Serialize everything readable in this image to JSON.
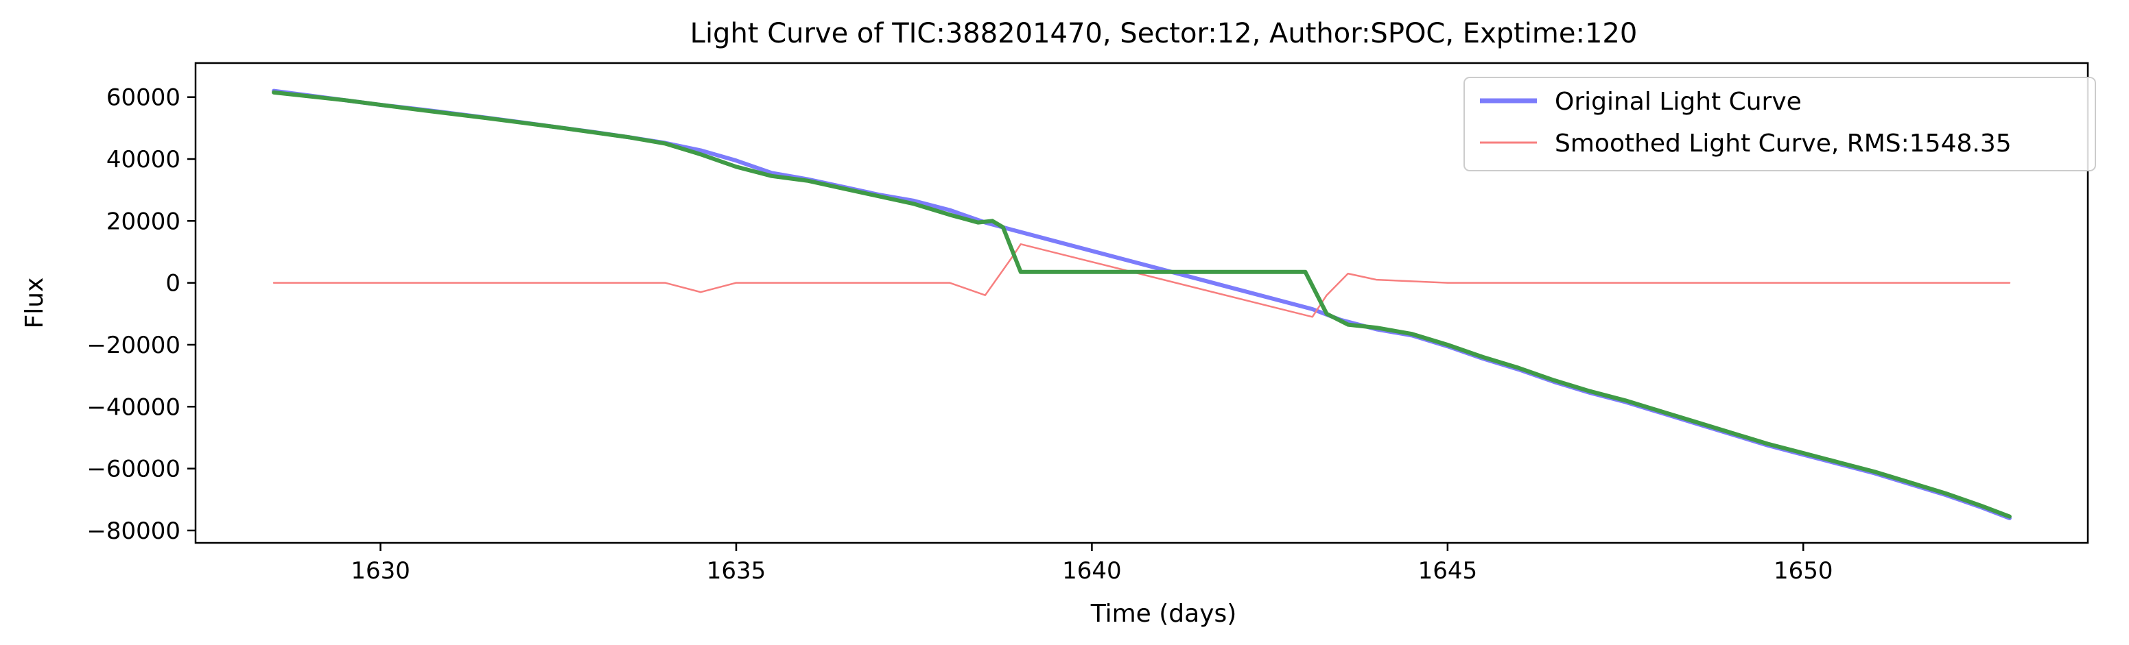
{
  "chart_data": {
    "type": "line",
    "title": "Light Curve of TIC:388201470, Sector:12, Author:SPOC, Exptime:120",
    "xlabel": "Time (days)",
    "ylabel": "Flux",
    "xlim": [
      1627.4,
      1654.0
    ],
    "ylim": [
      -84000,
      71000
    ],
    "x_ticks": [
      1630,
      1635,
      1640,
      1645,
      1650
    ],
    "y_ticks": [
      60000,
      40000,
      20000,
      0,
      -20000,
      -40000,
      -60000,
      -80000
    ],
    "grid": false,
    "legend_position": "top-right",
    "series": [
      {
        "name": "Original Light Curve",
        "color": "#7c7cfb",
        "points": [
          [
            1628.5,
            62000
          ],
          [
            1629.0,
            60500
          ],
          [
            1629.5,
            59000
          ],
          [
            1630.0,
            57500
          ],
          [
            1630.5,
            56200
          ],
          [
            1631.0,
            54800
          ],
          [
            1631.5,
            53300
          ],
          [
            1632.0,
            51800
          ],
          [
            1632.5,
            50200
          ],
          [
            1633.0,
            48700
          ],
          [
            1633.5,
            47000
          ],
          [
            1634.0,
            45200
          ],
          [
            1634.5,
            42800
          ],
          [
            1635.0,
            39500
          ],
          [
            1635.5,
            35500
          ],
          [
            1636.0,
            33500
          ],
          [
            1636.5,
            31000
          ],
          [
            1637.0,
            28500
          ],
          [
            1637.5,
            26500
          ],
          [
            1638.0,
            23500
          ],
          [
            1638.5,
            19500
          ],
          [
            1638.9,
            17000
          ],
          [
            1643.1,
            -8500
          ],
          [
            1643.5,
            -12000
          ],
          [
            1644.0,
            -15000
          ],
          [
            1644.5,
            -17000
          ],
          [
            1645.0,
            -20500
          ],
          [
            1645.5,
            -24500
          ],
          [
            1646.0,
            -28000
          ],
          [
            1646.5,
            -32000
          ],
          [
            1647.0,
            -35500
          ],
          [
            1647.5,
            -38500
          ],
          [
            1648.0,
            -42000
          ],
          [
            1648.5,
            -45500
          ],
          [
            1649.0,
            -49000
          ],
          [
            1649.5,
            -52500
          ],
          [
            1650.0,
            -55500
          ],
          [
            1650.5,
            -58500
          ],
          [
            1651.0,
            -61500
          ],
          [
            1651.5,
            -65000
          ],
          [
            1652.0,
            -68500
          ],
          [
            1652.5,
            -72500
          ],
          [
            1652.9,
            -76000
          ]
        ]
      },
      {
        "name": "Smoothed Light Curve, RMS:1548.35",
        "color": "#f77f7f",
        "points": [
          [
            1628.5,
            0
          ],
          [
            1630.0,
            0
          ],
          [
            1632.0,
            0
          ],
          [
            1634.0,
            0
          ],
          [
            1634.5,
            -3000
          ],
          [
            1635.0,
            0
          ],
          [
            1636.0,
            0
          ],
          [
            1637.0,
            0
          ],
          [
            1638.0,
            0
          ],
          [
            1638.5,
            -4000
          ],
          [
            1638.9,
            9000
          ],
          [
            1639.0,
            12500
          ],
          [
            1643.1,
            -11000
          ],
          [
            1643.3,
            -4000
          ],
          [
            1643.6,
            3000
          ],
          [
            1644.0,
            1000
          ],
          [
            1645.0,
            0
          ],
          [
            1647.0,
            0
          ],
          [
            1649.0,
            0
          ],
          [
            1651.0,
            0
          ],
          [
            1652.9,
            0
          ]
        ]
      },
      {
        "color": "#3f9a46",
        "points": [
          [
            1628.5,
            61500
          ],
          [
            1629.5,
            59000
          ],
          [
            1630.5,
            56000
          ],
          [
            1631.5,
            53200
          ],
          [
            1632.5,
            50200
          ],
          [
            1633.5,
            47000
          ],
          [
            1634.0,
            45000
          ],
          [
            1634.5,
            41500
          ],
          [
            1635.0,
            37500
          ],
          [
            1635.5,
            34500
          ],
          [
            1636.0,
            33000
          ],
          [
            1636.5,
            30500
          ],
          [
            1637.0,
            28000
          ],
          [
            1637.5,
            25500
          ],
          [
            1638.0,
            22000
          ],
          [
            1638.4,
            19500
          ],
          [
            1638.6,
            20000
          ],
          [
            1638.75,
            18000
          ],
          [
            1639.0,
            3500
          ],
          [
            1643.0,
            3500
          ],
          [
            1643.3,
            -10000
          ],
          [
            1643.6,
            -13500
          ],
          [
            1644.0,
            -14500
          ],
          [
            1644.5,
            -16500
          ],
          [
            1645.0,
            -20000
          ],
          [
            1645.5,
            -24000
          ],
          [
            1646.0,
            -27500
          ],
          [
            1646.5,
            -31500
          ],
          [
            1647.0,
            -35000
          ],
          [
            1647.5,
            -38000
          ],
          [
            1648.0,
            -41500
          ],
          [
            1648.5,
            -45000
          ],
          [
            1649.0,
            -48500
          ],
          [
            1649.5,
            -52000
          ],
          [
            1650.0,
            -55000
          ],
          [
            1650.5,
            -58000
          ],
          [
            1651.0,
            -61000
          ],
          [
            1651.5,
            -64500
          ],
          [
            1652.0,
            -68000
          ],
          [
            1652.5,
            -72000
          ],
          [
            1652.9,
            -75500
          ]
        ]
      }
    ]
  }
}
